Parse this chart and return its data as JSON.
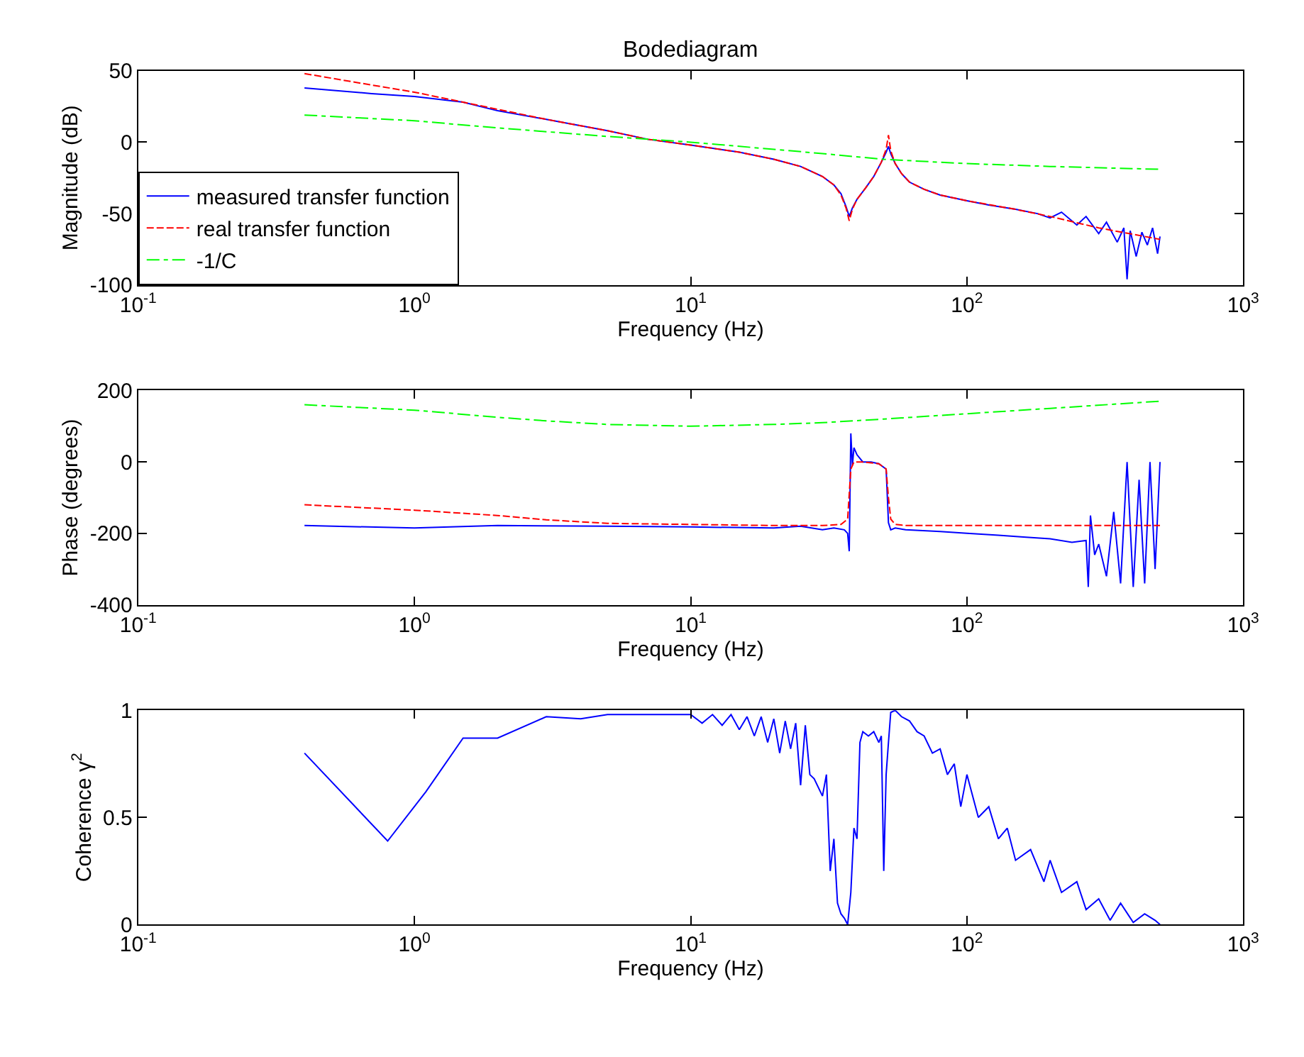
{
  "chart_data": [
    {
      "type": "line",
      "title": "Bodediagram",
      "xlabel": "Frequency (Hz)",
      "ylabel": "Magnitude (dB)",
      "log": "x",
      "grid": false,
      "marker": "none",
      "legend": "bottom left",
      "xlim": [
        0.1,
        1000
      ],
      "xticks": [
        {
          "value": 0.1,
          "label": "10$^{-1}$"
        },
        {
          "value": 1,
          "label": "10$^{0}$"
        },
        {
          "value": 10,
          "label": "10$^{1}$"
        },
        {
          "value": 100,
          "label": "10$^{2}$"
        },
        {
          "value": 1000,
          "label": "10$^{3}$"
        }
      ],
      "ylim": [
        -100,
        50
      ],
      "yticks": [
        -100,
        -50,
        0,
        50
      ],
      "series": [
        {
          "name": "measured transfer function",
          "color": "#0000ff",
          "line_style": "solid",
          "x": [
            0.4,
            0.7,
            1,
            1.5,
            2,
            3,
            5,
            7,
            10,
            15,
            20,
            25,
            30,
            33,
            35,
            36.5,
            37.5,
            38.5,
            40,
            43,
            46,
            49,
            51,
            52,
            53,
            55,
            58,
            62,
            70,
            80,
            100,
            120,
            150,
            180,
            200,
            220,
            250,
            270,
            300,
            320,
            350,
            370,
            380,
            390,
            410,
            430,
            450,
            470,
            490,
            500
          ],
          "values": [
            38,
            34,
            32,
            28,
            22,
            16,
            8,
            2,
            -2,
            -7,
            -12,
            -17,
            -24,
            -30,
            -36,
            -45,
            -52,
            -46,
            -40,
            -32,
            -24,
            -14,
            -7,
            -3,
            -8,
            -15,
            -22,
            -28,
            -33,
            -37,
            -41,
            -44,
            -47,
            -50,
            -53,
            -49,
            -58,
            -52,
            -64,
            -56,
            -70,
            -60,
            -96,
            -62,
            -80,
            -63,
            -72,
            -60,
            -78,
            -66
          ]
        },
        {
          "name": "real transfer function",
          "color": "#ff0000",
          "line_style": "dashed",
          "x": [
            0.4,
            0.7,
            1,
            1.5,
            2,
            3,
            5,
            7,
            10,
            15,
            20,
            25,
            30,
            33,
            35,
            36.5,
            37.5,
            38.5,
            40,
            43,
            46,
            49,
            51,
            52,
            53,
            55,
            58,
            62,
            70,
            80,
            100,
            150,
            200,
            300,
            500
          ],
          "values": [
            48,
            40,
            35,
            28,
            23,
            16,
            8,
            2,
            -2,
            -7,
            -12,
            -17,
            -24,
            -30,
            -37,
            -46,
            -55,
            -47,
            -40,
            -32,
            -24,
            -14,
            -5,
            5,
            -6,
            -15,
            -22,
            -28,
            -33,
            -37,
            -41,
            -47,
            -52,
            -60,
            -68
          ]
        },
        {
          "name": "-1/C",
          "color": "#00ff00",
          "line_style": "dashdot",
          "x": [
            0.4,
            1,
            2,
            5,
            10,
            20,
            30,
            50,
            100,
            200,
            500
          ],
          "values": [
            19,
            15,
            10,
            4,
            0,
            -5,
            -8,
            -12,
            -15,
            -17,
            -19
          ]
        }
      ]
    },
    {
      "type": "line",
      "xlabel": "Frequency (Hz)",
      "ylabel": "Phase (degrees)",
      "log": "x",
      "grid": false,
      "marker": "none",
      "xlim": [
        0.1,
        1000
      ],
      "xticks": [
        {
          "value": 0.1,
          "label": "10$^{-1}$"
        },
        {
          "value": 1,
          "label": "10$^{0}$"
        },
        {
          "value": 10,
          "label": "10$^{1}$"
        },
        {
          "value": 100,
          "label": "10$^{2}$"
        },
        {
          "value": 1000,
          "label": "10$^{3}$"
        }
      ],
      "ylim": [
        -400,
        200
      ],
      "yticks": [
        -400,
        -200,
        0,
        200
      ],
      "series": [
        {
          "color": "#0000ff",
          "line_style": "solid",
          "x": [
            0.4,
            1,
            2,
            5,
            10,
            20,
            25,
            30,
            33,
            36,
            37,
            37.5,
            38,
            38.5,
            39,
            40,
            42,
            45,
            48,
            51,
            52,
            53,
            55,
            60,
            80,
            100,
            130,
            160,
            200,
            240,
            270,
            275,
            280,
            290,
            300,
            320,
            340,
            360,
            380,
            400,
            420,
            440,
            460,
            480,
            500
          ],
          "values": [
            -178,
            -185,
            -178,
            -180,
            -182,
            -185,
            -180,
            -190,
            -185,
            -190,
            -200,
            -250,
            80,
            -10,
            40,
            20,
            0,
            0,
            -5,
            -20,
            -170,
            -190,
            -185,
            -190,
            -195,
            -200,
            -205,
            -210,
            -215,
            -225,
            -220,
            -350,
            -150,
            -260,
            -230,
            -320,
            -140,
            -340,
            0,
            -350,
            -50,
            -340,
            0,
            -300,
            0
          ]
        },
        {
          "color": "#ff0000",
          "line_style": "dashed",
          "x": [
            0.4,
            1,
            2,
            3,
            5,
            10,
            20,
            30,
            35,
            37,
            38,
            39,
            42,
            48,
            51,
            52,
            53,
            55,
            60,
            100,
            500
          ],
          "values": [
            -120,
            -135,
            -150,
            -162,
            -172,
            -175,
            -178,
            -178,
            -175,
            -160,
            -20,
            0,
            0,
            -5,
            -20,
            -100,
            -160,
            -175,
            -178,
            -178,
            -178
          ]
        },
        {
          "color": "#00ff00",
          "line_style": "dashdot",
          "x": [
            0.4,
            1,
            2,
            3,
            5,
            10,
            20,
            30,
            50,
            100,
            200,
            500
          ],
          "values": [
            160,
            145,
            125,
            115,
            105,
            100,
            105,
            110,
            120,
            135,
            150,
            170
          ]
        }
      ]
    },
    {
      "type": "line",
      "xlabel": "Frequency (Hz)",
      "ylabel": "Coherence γ$^{2}$",
      "log": "x",
      "grid": false,
      "marker": "none",
      "xlim": [
        0.1,
        1000
      ],
      "xticks": [
        {
          "value": 0.1,
          "label": "10$^{-1}$"
        },
        {
          "value": 1,
          "label": "10$^{0}$"
        },
        {
          "value": 10,
          "label": "10$^{1}$"
        },
        {
          "value": 100,
          "label": "10$^{2}$"
        },
        {
          "value": 1000,
          "label": "10$^{3}$"
        }
      ],
      "ylim": [
        0,
        1
      ],
      "yticks": [
        0,
        0.5,
        1
      ],
      "series": [
        {
          "color": "#0000ff",
          "line_style": "solid",
          "x": [
            0.4,
            0.8,
            1.1,
            1.5,
            2,
            3,
            4,
            5,
            7,
            10,
            11,
            12,
            13,
            14,
            15,
            16,
            17,
            18,
            19,
            20,
            21,
            22,
            23,
            24,
            25,
            26,
            27,
            28,
            30,
            31,
            32,
            33,
            34,
            35,
            36,
            37,
            38,
            39,
            40,
            41,
            42,
            44,
            46,
            48,
            49,
            50,
            51,
            52,
            53,
            55,
            58,
            62,
            66,
            70,
            75,
            80,
            85,
            90,
            95,
            100,
            110,
            120,
            130,
            140,
            150,
            170,
            190,
            200,
            220,
            250,
            270,
            300,
            330,
            360,
            400,
            440,
            480,
            500
          ],
          "values": [
            0.8,
            0.39,
            0.62,
            0.87,
            0.87,
            0.97,
            0.96,
            0.98,
            0.98,
            0.98,
            0.94,
            0.98,
            0.93,
            0.98,
            0.91,
            0.97,
            0.88,
            0.97,
            0.85,
            0.96,
            0.8,
            0.95,
            0.82,
            0.94,
            0.65,
            0.93,
            0.7,
            0.68,
            0.6,
            0.7,
            0.25,
            0.4,
            0.1,
            0.05,
            0.03,
            0,
            0.15,
            0.45,
            0.4,
            0.85,
            0.9,
            0.88,
            0.9,
            0.85,
            0.88,
            0.25,
            0.7,
            0.85,
            0.99,
            1.0,
            0.97,
            0.95,
            0.9,
            0.88,
            0.8,
            0.82,
            0.7,
            0.75,
            0.55,
            0.7,
            0.5,
            0.55,
            0.4,
            0.45,
            0.3,
            0.35,
            0.2,
            0.3,
            0.15,
            0.2,
            0.07,
            0.12,
            0.02,
            0.1,
            0.01,
            0.05,
            0.02,
            0.0
          ]
        }
      ]
    }
  ]
}
